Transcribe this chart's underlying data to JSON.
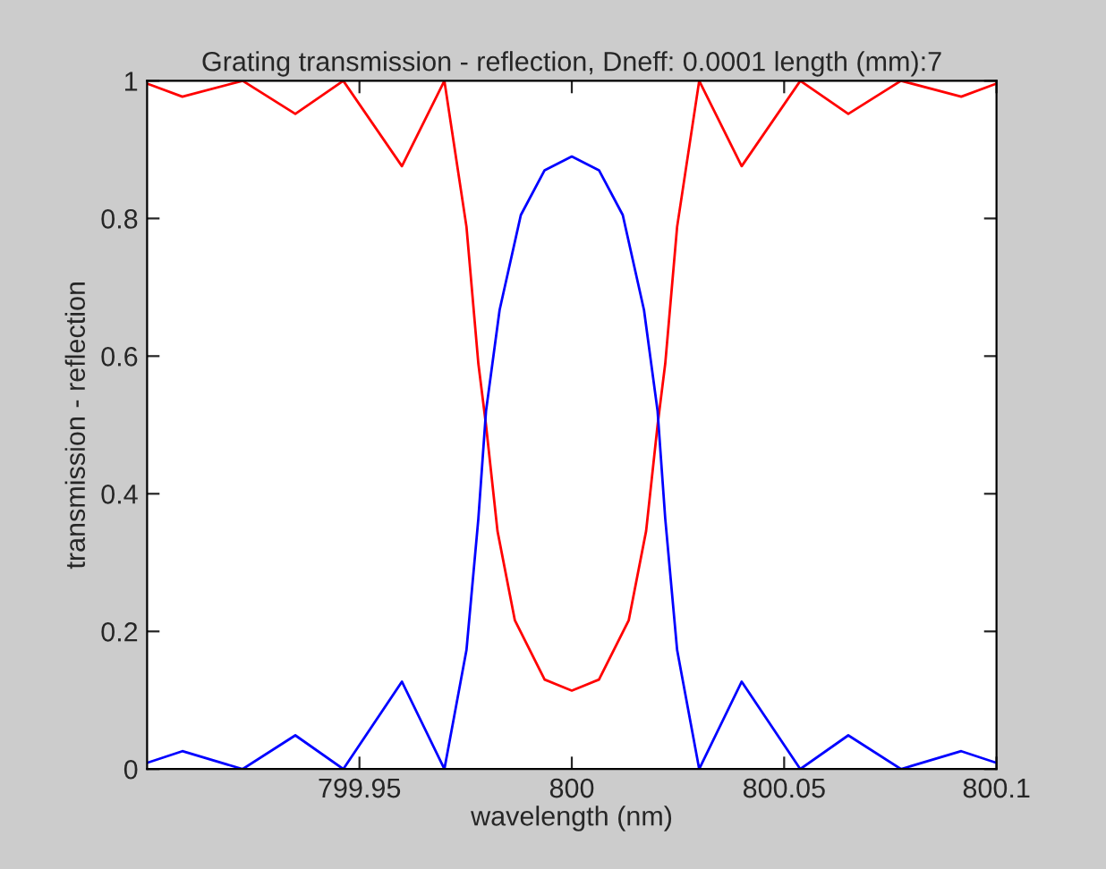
{
  "chart_data": {
    "type": "line",
    "title": "Grating transmission - reflection, Dneff: 0.0001 length (mm):7",
    "xlabel": "wavelength (nm)",
    "ylabel": "transmission - reflection",
    "series": [
      {
        "color": "#ff0000",
        "x": [
          799.9,
          799.9083,
          799.9225,
          799.9349,
          799.9462,
          799.96,
          799.97,
          799.9752,
          799.978,
          799.9798,
          799.9825,
          799.9866,
          799.9936,
          800,
          800.0064,
          800.0134,
          800.0175,
          800.0202,
          800.022,
          800.0248,
          800.03,
          800.04,
          800.0538,
          800.0651,
          800.0775,
          800.0917,
          800.1
        ],
        "values": [
          0.996,
          0.977,
          1.0,
          0.952,
          1.0,
          0.876,
          1.0,
          0.788,
          0.589,
          0.5,
          0.346,
          0.216,
          0.13,
          0.114,
          0.13,
          0.216,
          0.346,
          0.5,
          0.589,
          0.788,
          1.0,
          0.876,
          1.0,
          0.952,
          1.0,
          0.977,
          0.996
        ]
      },
      {
        "color": "#0000ff",
        "x": [
          799.9,
          799.9083,
          799.9225,
          799.9349,
          799.9462,
          799.96,
          799.97,
          799.9752,
          799.978,
          799.9798,
          799.983,
          799.988,
          799.9936,
          800,
          800.0064,
          800.012,
          800.017,
          800.0202,
          800.022,
          800.0248,
          800.03,
          800.04,
          800.0538,
          800.0651,
          800.0775,
          800.0917,
          800.1
        ],
        "values": [
          0.009,
          0.026,
          0.0,
          0.049,
          0.0,
          0.127,
          0.0,
          0.173,
          0.364,
          0.52,
          0.667,
          0.805,
          0.87,
          0.89,
          0.87,
          0.805,
          0.667,
          0.52,
          0.364,
          0.173,
          0.0,
          0.127,
          0.0,
          0.049,
          0.0,
          0.026,
          0.009
        ]
      }
    ],
    "xlim": [
      799.9,
      800.1
    ],
    "xticks": [
      799.95,
      800,
      800.05,
      800.1
    ],
    "ylim": [
      0,
      1
    ],
    "yticks": [
      0,
      0.2,
      0.4,
      0.6,
      0.8,
      1
    ],
    "grid": false,
    "legend": false,
    "marker": "none",
    "line_style": "solid"
  }
}
